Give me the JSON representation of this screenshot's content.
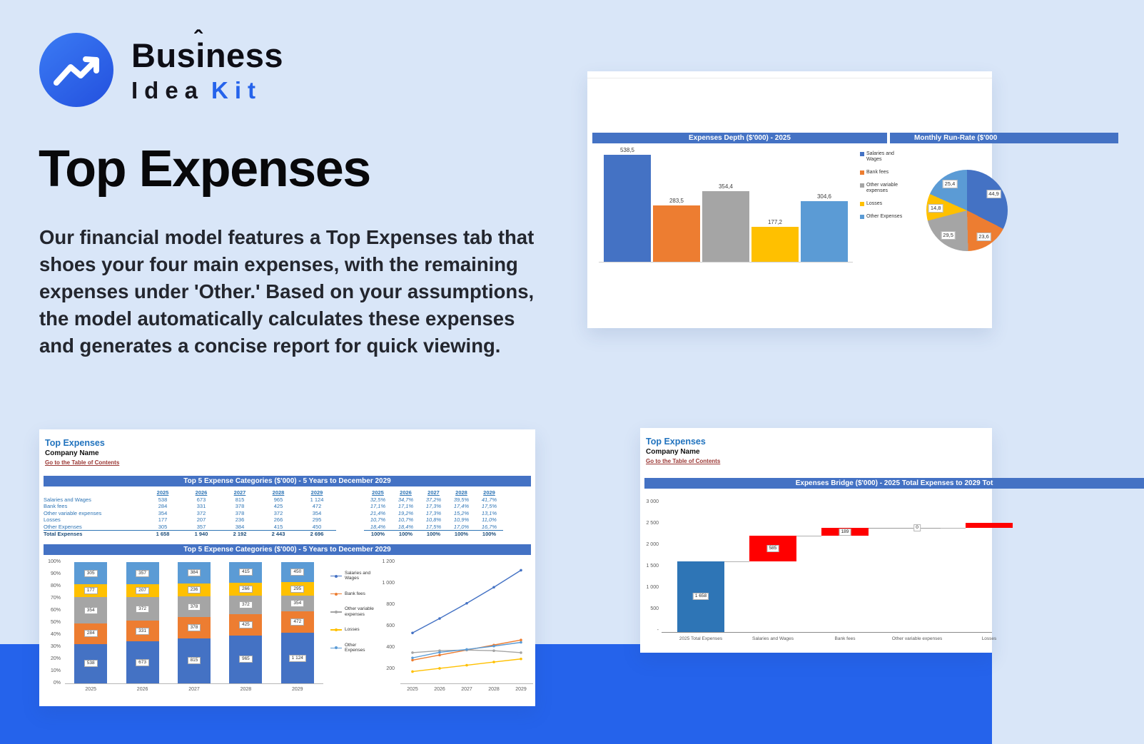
{
  "theme": {
    "page_bg": "#d9e6f8",
    "band_color": "#2563eb",
    "accent_blue": "#2563eb",
    "excel_header_bg": "#4472C4",
    "series_colors": [
      "#4472C4",
      "#ED7D31",
      "#A5A5A5",
      "#FFC000",
      "#5B9BD5"
    ],
    "waterfall_base_color": "#2E75B6",
    "waterfall_increase_color": "#FF0000",
    "table_text_color": "#2E75B6",
    "total_text_color": "#1F4E79",
    "link_red": "#9A3734"
  },
  "brand": {
    "name_top": "Business",
    "caret": "ˆ",
    "name_bottom_dark": "Idea",
    "name_bottom_accent": "Kit"
  },
  "hero": {
    "title": "Top Expenses",
    "paragraph": "Our financial model features a Top Expenses tab that shoes your four main expenses, with the remaining expenses under 'Other.' Based on your assumptions, the model automatically calculates these expenses and generates a concise report for quick viewing."
  },
  "sheet1": {
    "header_left": "Expenses Depth ($'000) - 2025",
    "header_right": "Monthly Run-Rate ($'000"
  },
  "sheet2": {
    "title": "Top Expenses",
    "company": "Company Name",
    "toc_link": "Go to the Table of Contents",
    "table_header": "Top 5 Expense Categories ($'000) - 5 Years to December 2029",
    "chart_header": "Top 5 Expense Categories ($'000) - 5 Years to December 2029",
    "years": [
      "2025",
      "2026",
      "2027",
      "2028",
      "2029"
    ],
    "rows": [
      {
        "label": "Salaries and Wages",
        "values": [
          "538",
          "673",
          "815",
          "965",
          "1 124"
        ],
        "pct": [
          "32,5%",
          "34,7%",
          "37,2%",
          "39,5%",
          "41,7%"
        ]
      },
      {
        "label": "Bank fees",
        "values": [
          "284",
          "331",
          "378",
          "425",
          "472"
        ],
        "pct": [
          "17,1%",
          "17,1%",
          "17,3%",
          "17,4%",
          "17,5%"
        ]
      },
      {
        "label": "Other variable expenses",
        "values": [
          "354",
          "372",
          "378",
          "372",
          "354"
        ],
        "pct": [
          "21,4%",
          "19,2%",
          "17,3%",
          "15,2%",
          "13,1%"
        ]
      },
      {
        "label": "Losses",
        "values": [
          "177",
          "207",
          "236",
          "266",
          "295"
        ],
        "pct": [
          "10,7%",
          "10,7%",
          "10,8%",
          "10,9%",
          "11,0%"
        ]
      },
      {
        "label": "Other Expenses",
        "values": [
          "305",
          "357",
          "384",
          "415",
          "450"
        ],
        "pct": [
          "18,4%",
          "18,4%",
          "17,5%",
          "17,0%",
          "16,7%"
        ]
      }
    ],
    "total": {
      "label": "Total Expenses",
      "values": [
        "1 658",
        "1 940",
        "2 192",
        "2 443",
        "2 696"
      ],
      "pct": [
        "100%",
        "100%",
        "100%",
        "100%",
        "100%"
      ]
    }
  },
  "sheet3": {
    "title": "Top Expenses",
    "company": "Company Name",
    "toc_link": "Go to the Table of Contents",
    "chart_header": "Expenses Bridge ($'000) - 2025 Total Expenses to 2029 Tot"
  },
  "chart_data": [
    {
      "id": "expenses_depth_bar",
      "type": "bar",
      "title": "Expenses Depth ($'000) - 2025",
      "categories": [
        "Salaries and Wages",
        "Bank fees",
        "Other variable expenses",
        "Losses",
        "Other Expenses"
      ],
      "values": [
        538.5,
        283.5,
        354.4,
        177.2,
        304.6
      ],
      "value_labels": [
        "538,5",
        "283,5",
        "354,4",
        "177,2",
        "304,6"
      ],
      "legend": [
        "Salaries and Wages",
        "Bank fees",
        "Other variable expenses",
        "Losses",
        "Other Expenses"
      ],
      "legend_position": "right",
      "ylim": [
        0,
        600
      ],
      "grid": false
    },
    {
      "id": "monthly_run_rate_pie",
      "type": "pie",
      "title": "Monthly Run-Rate ($'000",
      "labels": [
        "Salaries and Wages",
        "Bank fees",
        "Other variable expenses",
        "Losses",
        "Other Expenses"
      ],
      "values": [
        44.9,
        23.6,
        29.5,
        14.8,
        25.4
      ],
      "slice_labels": [
        "44,9",
        "23,6",
        "29,5",
        "14,8",
        "25,4"
      ]
    },
    {
      "id": "top5_stacked_bar",
      "type": "bar",
      "stacked": true,
      "percent": true,
      "title": "Top 5 Expense Categories ($'000) - 5 Years to December 2029",
      "categories": [
        "2025",
        "2026",
        "2027",
        "2028",
        "2029"
      ],
      "series": [
        {
          "name": "Salaries and Wages",
          "values": [
            538,
            673,
            815,
            965,
            1124
          ],
          "labels": [
            "538",
            "673",
            "815",
            "965",
            "1 124"
          ]
        },
        {
          "name": "Bank fees",
          "values": [
            284,
            331,
            378,
            425,
            472
          ],
          "labels": [
            "284",
            "331",
            "378",
            "425",
            "472"
          ]
        },
        {
          "name": "Other variable expenses",
          "values": [
            354,
            372,
            378,
            372,
            354
          ],
          "labels": [
            "354",
            "372",
            "378",
            "372",
            "354"
          ]
        },
        {
          "name": "Losses",
          "values": [
            177,
            207,
            236,
            266,
            295
          ],
          "labels": [
            "177",
            "207",
            "236",
            "266",
            "295"
          ]
        },
        {
          "name": "Other Expenses",
          "values": [
            305,
            357,
            384,
            415,
            450
          ],
          "labels": [
            "305",
            "357",
            "384",
            "415",
            "450"
          ]
        }
      ],
      "yticks": [
        "0%",
        "10%",
        "20%",
        "30%",
        "40%",
        "50%",
        "60%",
        "70%",
        "80%",
        "90%",
        "100%"
      ],
      "ylim": [
        0,
        1
      ]
    },
    {
      "id": "top5_line_chart",
      "type": "line",
      "categories": [
        "2025",
        "2026",
        "2027",
        "2028",
        "2029"
      ],
      "series": [
        {
          "name": "Salaries and Wages",
          "values": [
            538,
            673,
            815,
            965,
            1124
          ]
        },
        {
          "name": "Bank fees",
          "values": [
            284,
            331,
            378,
            425,
            472
          ]
        },
        {
          "name": "Other variable expenses",
          "values": [
            354,
            372,
            378,
            372,
            354
          ]
        },
        {
          "name": "Losses",
          "values": [
            177,
            207,
            236,
            266,
            295
          ]
        },
        {
          "name": "Other Expenses",
          "values": [
            305,
            357,
            384,
            415,
            450
          ]
        }
      ],
      "ytick_labels": [
        "200",
        "400",
        "600",
        "800",
        "1 000",
        "1 200"
      ],
      "ylim": [
        0,
        1200
      ],
      "legend_position": "left"
    },
    {
      "id": "expenses_bridge_waterfall",
      "type": "waterfall",
      "title": "Expenses Bridge ($'000) - 2025 Total Expenses to 2029 Tot",
      "categories": [
        "2025 Total Expenses",
        "Salaries and Wages",
        "Bank fees",
        "Other variable expenses",
        "Losses"
      ],
      "base": 1658,
      "base_label": "1 658",
      "deltas": [
        585,
        189,
        0,
        118
      ],
      "delta_labels": [
        "585",
        "189",
        "0",
        ""
      ],
      "yticks": [
        "3 000",
        "2 500",
        "2 000",
        "1 500",
        "1 000",
        "500",
        "-"
      ],
      "ylim": [
        0,
        3000
      ]
    }
  ]
}
